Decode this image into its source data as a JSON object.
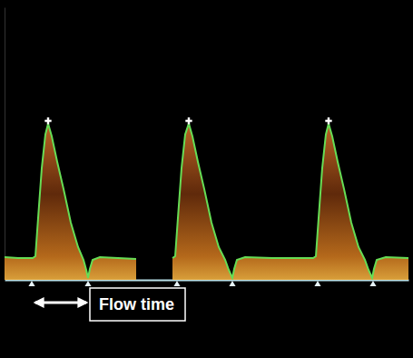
{
  "chart_data": {
    "type": "area",
    "x": [
      0,
      15,
      31,
      34,
      37,
      41,
      45,
      48,
      52,
      58,
      65,
      73,
      81,
      87,
      90,
      92,
      94,
      97,
      105,
      125,
      145,
      165,
      185,
      188,
      191,
      195,
      199,
      203,
      207,
      213,
      220,
      228,
      236,
      243,
      247,
      251,
      253,
      256,
      265,
      295,
      325,
      340,
      343,
      346,
      350,
      354,
      357,
      361,
      367,
      374,
      382,
      390,
      397,
      401,
      405,
      407,
      410,
      420,
      445
    ],
    "y": [
      25,
      24,
      24,
      26,
      68,
      123,
      160,
      172,
      158,
      130,
      100,
      63,
      36,
      22,
      11,
      2,
      12,
      22,
      25,
      24,
      23,
      null,
      24,
      26,
      68,
      123,
      160,
      172,
      158,
      130,
      100,
      63,
      36,
      22,
      11,
      2,
      12,
      22,
      25,
      24,
      24,
      24,
      26,
      68,
      123,
      160,
      172,
      158,
      130,
      100,
      63,
      36,
      22,
      11,
      2,
      12,
      22,
      25,
      24
    ],
    "color": "#66dd55",
    "xlim": [
      0,
      445
    ],
    "ylim": [
      0,
      300
    ],
    "tick_labels": false,
    "grid": false,
    "baseline_marks": [
      30,
      92,
      190,
      251,
      345,
      406
    ],
    "annotations": [
      {
        "text": "Flow time",
        "x_start": 32,
        "x_end": 92
      }
    ]
  }
}
